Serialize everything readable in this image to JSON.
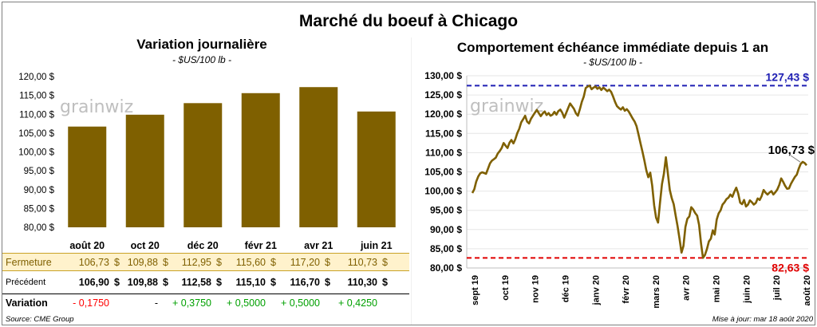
{
  "title": "Marché du boeuf à Chicago",
  "left": {
    "title": "Variation journalière",
    "subtitle": "- $US/100 lb -",
    "watermark": "grainwiz",
    "chart_data": {
      "type": "bar",
      "categories": [
        "août 20",
        "oct 20",
        "déc 20",
        "févr 21",
        "avr 21",
        "juin 21"
      ],
      "values": [
        106.73,
        109.88,
        112.95,
        115.6,
        117.2,
        110.73
      ],
      "ylim": [
        80,
        120
      ],
      "yticks": [
        "80,00 $",
        "85,00 $",
        "90,00 $",
        "95,00 $",
        "100,00 $",
        "105,00 $",
        "110,00 $",
        "115,00 $",
        "120,00 $"
      ],
      "bar_color": "#7f6000"
    },
    "table": {
      "rows": [
        {
          "label": "Fermeture",
          "values": [
            "106,73",
            "109,88",
            "112,95",
            "115,60",
            "117,20",
            "110,73"
          ],
          "units": [
            "$",
            "$",
            "$",
            "$",
            "$",
            "$"
          ],
          "highlight": true
        },
        {
          "label": "Précédent",
          "values": [
            "106,90",
            "109,88",
            "112,58",
            "115,10",
            "116,70",
            "110,30"
          ],
          "units": [
            "$",
            "$",
            "$",
            "$",
            "$",
            "$"
          ],
          "highlight": false
        },
        {
          "label": "Variation",
          "values": [
            "- 0,1750",
            "-",
            "+ 0,3750",
            "+ 0,5000",
            "+ 0,5000",
            "+ 0,4250"
          ],
          "units": [
            "",
            "",
            "",
            "",
            "",
            ""
          ],
          "highlight": false
        }
      ],
      "highlight_color": "#fff2cc",
      "positive_color": "#00a000",
      "negative_color": "#ff0000"
    },
    "source": "Source: CME Group"
  },
  "right": {
    "title": "Comportement  échéance immédiate depuis 1 an",
    "subtitle": "- $US/100 lb -",
    "watermark": "grainwiz",
    "update": "Mise à jour: mar 18 août 2020",
    "chart_data": {
      "type": "line",
      "ylim": [
        80,
        130
      ],
      "yticks": [
        "80,00 $",
        "85,00 $",
        "90,00 $",
        "95,00 $",
        "100,00 $",
        "105,00 $",
        "110,00 $",
        "115,00 $",
        "120,00 $",
        "125,00 $",
        "130,00 $"
      ],
      "xticks": [
        "sept 19",
        "oct 19",
        "nov 19",
        "déc 19",
        "janv 20",
        "févr 20",
        "mars 20",
        "avr 20",
        "mai 20",
        "juin 20",
        "juil 20",
        "août 20"
      ],
      "line_color": "#7f6000",
      "max": {
        "value": 127.43,
        "label": "127,43 $",
        "color": "#1f1fb4"
      },
      "min": {
        "value": 82.63,
        "label": "82,63 $",
        "color": "#e00000"
      },
      "last": {
        "value": 106.73,
        "label": "106,73 $"
      },
      "series": [
        {
          "values": [
            99.5,
            100.5,
            102.5,
            103.8,
            104.6,
            104.9,
            104.7,
            104.5,
            105.8,
            107.2,
            107.9,
            108.3,
            108.7,
            109.8,
            110.4,
            111.2,
            112.5,
            111.8,
            111.2,
            112.6,
            113.3,
            112.4,
            113.5,
            115.1,
            116.2,
            117.9,
            118.7,
            119.6,
            118.1,
            117.6,
            118.8,
            119.6,
            120.4,
            121.1,
            120.3,
            119.5,
            120.2,
            120.7,
            119.8,
            120.3,
            119.6,
            119.9,
            120.6,
            119.9,
            120.8,
            121.2,
            120.4,
            119.1,
            120.3,
            121.6,
            122.8,
            122.1,
            121.4,
            120.2,
            119.6,
            121.3,
            123.2,
            124.6,
            126.8,
            127.2,
            127.43,
            126.5,
            126.9,
            127.2,
            126.6,
            127.0,
            126.3,
            126.9,
            126.5,
            126.0,
            126.4,
            125.8,
            124.6,
            123.2,
            122.1,
            121.6,
            121.2,
            121.8,
            120.9,
            121.3,
            120.7,
            119.8,
            118.9,
            118.1,
            116.9,
            114.7,
            112.5,
            110.3,
            108.0,
            105.4,
            103.6,
            104.8,
            101.5,
            96.3,
            93.1,
            91.8,
            96.9,
            101.8,
            104.5,
            108.8,
            104.7,
            100.3,
            98.2,
            96.6,
            93.7,
            90.8,
            87.6,
            84.0,
            85.7,
            90.7,
            92.8,
            93.4,
            95.8,
            95.2,
            94.3,
            93.6,
            91.2,
            86.3,
            82.63,
            83.4,
            84.9,
            86.9,
            87.6,
            89.8,
            88.7,
            92.6,
            94.2,
            95.0,
            96.5,
            97.1,
            97.9,
            98.3,
            99.1,
            98.5,
            99.8,
            100.9,
            99.4,
            97.0,
            96.6,
            97.7,
            96.0,
            96.5,
            97.6,
            97.1,
            96.5,
            96.9,
            98.1,
            97.7,
            98.7,
            100.3,
            99.6,
            99.1,
            99.6,
            100.0,
            99.1,
            99.7,
            100.4,
            101.6,
            103.3,
            102.4,
            101.4,
            100.6,
            100.7,
            101.9,
            102.8,
            103.7,
            104.3,
            105.9,
            107.1,
            107.6,
            107.3,
            106.73
          ]
        }
      ]
    }
  }
}
